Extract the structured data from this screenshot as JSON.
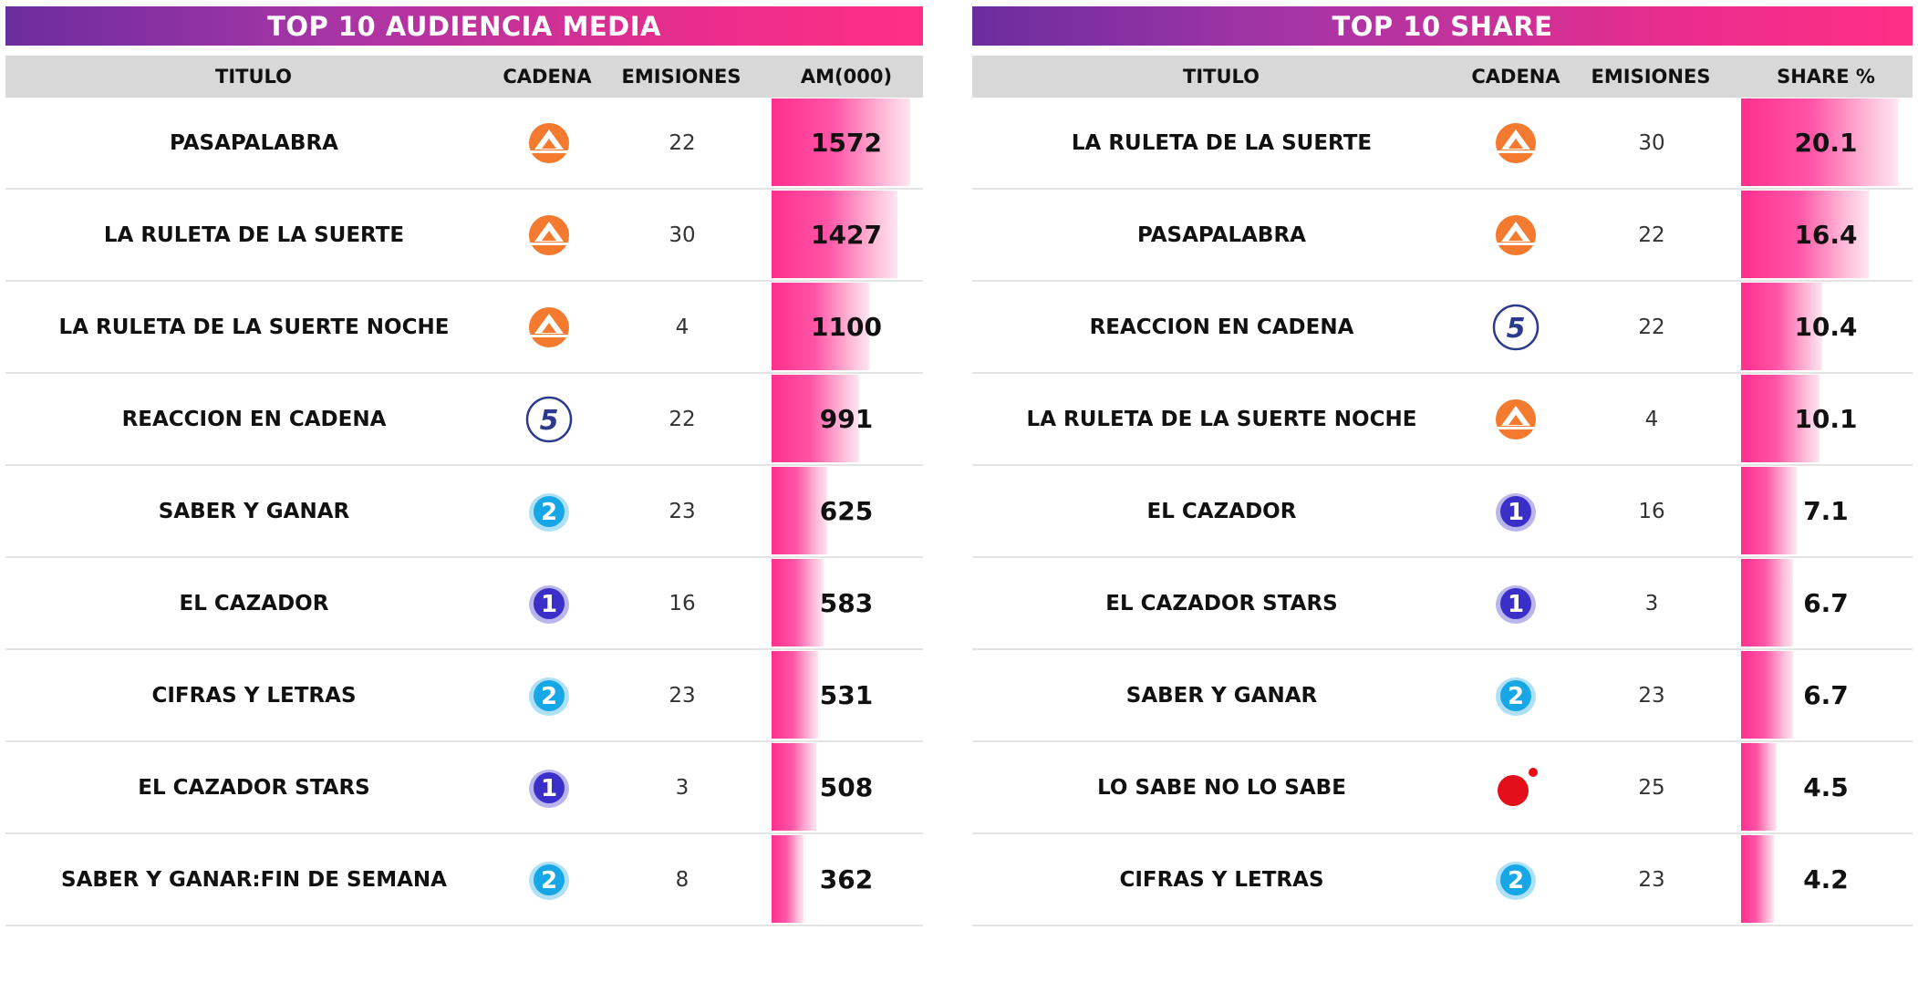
{
  "icons": {
    "antena3": "antena3-logo",
    "cuatro_5": "telecinco-logo",
    "la1": "la1-logo",
    "la2": "la2-logo",
    "cuatro_dot": "cuatro-logo"
  },
  "colors": {
    "banner_start": "#6b2d9e",
    "banner_end": "#ff2f86",
    "bar": "#ff2f8e",
    "antena3": "#f47a30",
    "telecinco": "#2b3a8c",
    "la1": "#3a2fc9",
    "la2": "#17a6e6",
    "cuatro": "#e3101b"
  },
  "left": {
    "title": "TOP 10 AUDIENCIA MEDIA",
    "headers": {
      "titulo": "TITULO",
      "cadena": "CADENA",
      "emisiones": "EMISIONES",
      "value": "AM(000)"
    },
    "rows": [
      {
        "titulo": "PASAPALABRA",
        "cadena": "antena3",
        "emisiones": "22",
        "value": "1572"
      },
      {
        "titulo": "LA RULETA DE LA SUERTE",
        "cadena": "antena3",
        "emisiones": "30",
        "value": "1427"
      },
      {
        "titulo": "LA RULETA DE LA SUERTE NOCHE",
        "cadena": "antena3",
        "emisiones": "4",
        "value": "1100"
      },
      {
        "titulo": "REACCION EN CADENA",
        "cadena": "telecinco",
        "emisiones": "22",
        "value": "991"
      },
      {
        "titulo": "SABER Y GANAR",
        "cadena": "la2",
        "emisiones": "23",
        "value": "625"
      },
      {
        "titulo": "EL CAZADOR",
        "cadena": "la1",
        "emisiones": "16",
        "value": "583"
      },
      {
        "titulo": "CIFRAS Y LETRAS",
        "cadena": "la2",
        "emisiones": "23",
        "value": "531"
      },
      {
        "titulo": "EL CAZADOR STARS",
        "cadena": "la1",
        "emisiones": "3",
        "value": "508"
      },
      {
        "titulo": "SABER Y GANAR:FIN DE SEMANA",
        "cadena": "la2",
        "emisiones": "8",
        "value": "362"
      }
    ]
  },
  "right": {
    "title": "TOP 10 SHARE",
    "headers": {
      "titulo": "TITULO",
      "cadena": "CADENA",
      "emisiones": "EMISIONES",
      "value": "SHARE %"
    },
    "rows": [
      {
        "titulo": "LA RULETA DE LA SUERTE",
        "cadena": "antena3",
        "emisiones": "30",
        "value": "20.1"
      },
      {
        "titulo": "PASAPALABRA",
        "cadena": "antena3",
        "emisiones": "22",
        "value": "16.4"
      },
      {
        "titulo": "REACCION EN CADENA",
        "cadena": "telecinco",
        "emisiones": "22",
        "value": "10.4"
      },
      {
        "titulo": "LA RULETA DE LA SUERTE NOCHE",
        "cadena": "antena3",
        "emisiones": "4",
        "value": "10.1"
      },
      {
        "titulo": "EL CAZADOR",
        "cadena": "la1",
        "emisiones": "16",
        "value": "7.1"
      },
      {
        "titulo": "EL CAZADOR STARS",
        "cadena": "la1",
        "emisiones": "3",
        "value": "6.7"
      },
      {
        "titulo": "SABER Y GANAR",
        "cadena": "la2",
        "emisiones": "23",
        "value": "6.7"
      },
      {
        "titulo": "LO SABE NO LO SABE",
        "cadena": "cuatro",
        "emisiones": "25",
        "value": "4.5"
      },
      {
        "titulo": "CIFRAS Y LETRAS",
        "cadena": "la2",
        "emisiones": "23",
        "value": "4.2"
      }
    ]
  },
  "chart_data": [
    {
      "type": "bar",
      "title": "TOP 10 AUDIENCIA MEDIA",
      "categories": [
        "PASAPALABRA",
        "LA RULETA DE LA SUERTE",
        "LA RULETA DE LA SUERTE NOCHE",
        "REACCION EN CADENA",
        "SABER Y GANAR",
        "EL CAZADOR",
        "CIFRAS Y LETRAS",
        "EL CAZADOR STARS",
        "SABER Y GANAR:FIN DE SEMANA"
      ],
      "values": [
        1572,
        1427,
        1100,
        991,
        625,
        583,
        531,
        508,
        362
      ],
      "ylabel": "AM(000)",
      "ylim": [
        0,
        1650
      ]
    },
    {
      "type": "bar",
      "title": "TOP 10 SHARE",
      "categories": [
        "LA RULETA DE LA SUERTE",
        "PASAPALABRA",
        "REACCION EN CADENA",
        "LA RULETA DE LA SUERTE NOCHE",
        "EL CAZADOR",
        "EL CAZADOR STARS",
        "SABER Y GANAR",
        "LO SABE NO LO SABE",
        "CIFRAS Y LETRAS"
      ],
      "values": [
        20.1,
        16.4,
        10.4,
        10.1,
        7.1,
        6.7,
        6.7,
        4.5,
        4.2
      ],
      "ylabel": "SHARE %",
      "ylim": [
        0,
        21.5
      ]
    }
  ]
}
